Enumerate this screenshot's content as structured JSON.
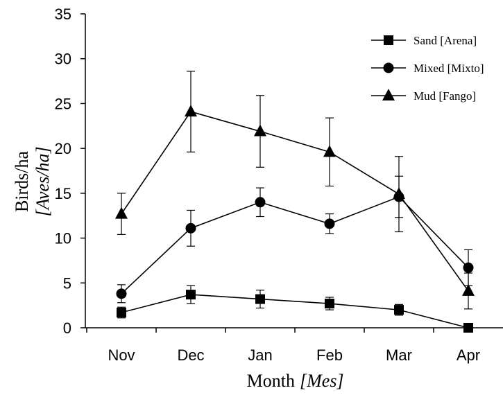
{
  "chart_data": {
    "type": "line",
    "categories": [
      "Nov",
      "Dec",
      "Jan",
      "Feb",
      "Mar",
      "Apr"
    ],
    "ylim": [
      0,
      35
    ],
    "yticks": [
      "0",
      "5",
      "10",
      "15",
      "20",
      "25",
      "30",
      "35"
    ],
    "ylabel": "Birds/ha",
    "ylabel_sub": "[Aves/ha]",
    "xlabel": "Month",
    "xlabel_sub": "[Mes]",
    "grid": false,
    "legend_position": "top-right",
    "series": [
      {
        "name": "Sand [Arena]",
        "marker": "square",
        "values": [
          1.7,
          3.7,
          3.2,
          2.7,
          2.0,
          0.0
        ],
        "errors": [
          0.6,
          1.0,
          1.0,
          0.7,
          0.6,
          0.0
        ]
      },
      {
        "name": "Mixed [Mixto]",
        "marker": "circle",
        "values": [
          3.8,
          11.1,
          14.0,
          11.6,
          14.6,
          6.7
        ],
        "errors": [
          1.0,
          2.0,
          1.6,
          1.1,
          2.3,
          2.0
        ]
      },
      {
        "name": "Mud [Fango]",
        "marker": "triangle",
        "values": [
          12.7,
          24.1,
          21.9,
          19.6,
          14.9,
          4.1
        ],
        "errors": [
          2.3,
          4.5,
          4.0,
          3.8,
          4.2,
          2.0
        ]
      }
    ]
  }
}
